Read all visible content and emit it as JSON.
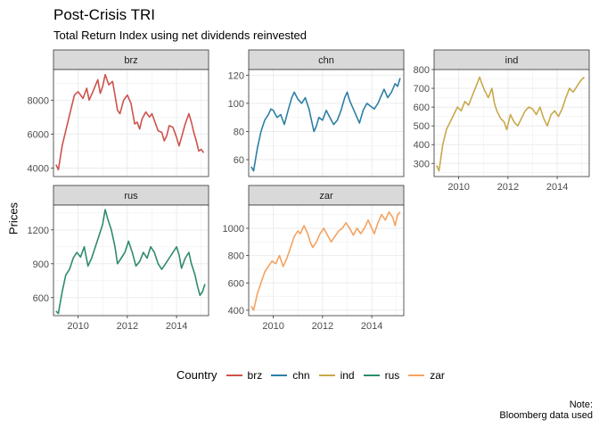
{
  "chart_data": {
    "type": "line",
    "title": "Post-Crisis TRI",
    "subtitle": "Total Return Index using net dividends reinvested",
    "ylabel": "Prices",
    "xlabel": "",
    "legend_title": "Country",
    "legend_position": "bottom",
    "note_lines": [
      "Note:",
      "Bloomberg data used"
    ],
    "grid": true,
    "x_ticks": [
      "2010",
      "2012",
      "2014"
    ],
    "xlim": [
      2009.0,
      2015.3
    ],
    "panels": [
      {
        "name": "brz",
        "color": "#CD534C",
        "ylim": [
          3500,
          9800
        ],
        "y_ticks": [
          4000,
          6000,
          8000
        ],
        "points": [
          [
            2009.1,
            4200
          ],
          [
            2009.2,
            3900
          ],
          [
            2009.35,
            5300
          ],
          [
            2009.5,
            6200
          ],
          [
            2009.7,
            7400
          ],
          [
            2009.85,
            8300
          ],
          [
            2010.0,
            8500
          ],
          [
            2010.2,
            8100
          ],
          [
            2010.35,
            8700
          ],
          [
            2010.45,
            8000
          ],
          [
            2010.6,
            8500
          ],
          [
            2010.8,
            9200
          ],
          [
            2010.9,
            8400
          ],
          [
            2011.0,
            8800
          ],
          [
            2011.1,
            9500
          ],
          [
            2011.25,
            8900
          ],
          [
            2011.4,
            9100
          ],
          [
            2011.5,
            8300
          ],
          [
            2011.6,
            7400
          ],
          [
            2011.7,
            7200
          ],
          [
            2011.85,
            8000
          ],
          [
            2012.0,
            8300
          ],
          [
            2012.15,
            7800
          ],
          [
            2012.3,
            6600
          ],
          [
            2012.4,
            6700
          ],
          [
            2012.5,
            6300
          ],
          [
            2012.6,
            6900
          ],
          [
            2012.75,
            7300
          ],
          [
            2012.9,
            7000
          ],
          [
            2013.0,
            7200
          ],
          [
            2013.1,
            6800
          ],
          [
            2013.25,
            6200
          ],
          [
            2013.4,
            6100
          ],
          [
            2013.5,
            5600
          ],
          [
            2013.6,
            5900
          ],
          [
            2013.7,
            6500
          ],
          [
            2013.85,
            6400
          ],
          [
            2014.0,
            5800
          ],
          [
            2014.1,
            5300
          ],
          [
            2014.2,
            5800
          ],
          [
            2014.35,
            6600
          ],
          [
            2014.5,
            7200
          ],
          [
            2014.6,
            6700
          ],
          [
            2014.7,
            6100
          ],
          [
            2014.8,
            5600
          ],
          [
            2014.9,
            5000
          ],
          [
            2015.0,
            5100
          ],
          [
            2015.1,
            4900
          ]
        ]
      },
      {
        "name": "chn",
        "color": "#2E7FA6",
        "ylim": [
          48,
          124
        ],
        "y_ticks": [
          60,
          80,
          100,
          120
        ],
        "points": [
          [
            2009.1,
            55
          ],
          [
            2009.2,
            52
          ],
          [
            2009.35,
            68
          ],
          [
            2009.5,
            80
          ],
          [
            2009.65,
            88
          ],
          [
            2009.8,
            92
          ],
          [
            2009.9,
            96
          ],
          [
            2010.0,
            95
          ],
          [
            2010.15,
            90
          ],
          [
            2010.3,
            92
          ],
          [
            2010.45,
            85
          ],
          [
            2010.6,
            95
          ],
          [
            2010.75,
            104
          ],
          [
            2010.85,
            108
          ],
          [
            2011.0,
            103
          ],
          [
            2011.15,
            100
          ],
          [
            2011.3,
            104
          ],
          [
            2011.45,
            96
          ],
          [
            2011.55,
            88
          ],
          [
            2011.65,
            80
          ],
          [
            2011.75,
            84
          ],
          [
            2011.85,
            90
          ],
          [
            2012.0,
            88
          ],
          [
            2012.15,
            95
          ],
          [
            2012.3,
            90
          ],
          [
            2012.45,
            85
          ],
          [
            2012.6,
            88
          ],
          [
            2012.75,
            95
          ],
          [
            2012.9,
            104
          ],
          [
            2013.0,
            108
          ],
          [
            2013.1,
            102
          ],
          [
            2013.25,
            96
          ],
          [
            2013.4,
            90
          ],
          [
            2013.5,
            86
          ],
          [
            2013.65,
            95
          ],
          [
            2013.8,
            100
          ],
          [
            2013.95,
            98
          ],
          [
            2014.1,
            96
          ],
          [
            2014.25,
            100
          ],
          [
            2014.4,
            106
          ],
          [
            2014.5,
            110
          ],
          [
            2014.65,
            104
          ],
          [
            2014.8,
            108
          ],
          [
            2014.95,
            114
          ],
          [
            2015.05,
            112
          ],
          [
            2015.15,
            118
          ]
        ]
      },
      {
        "name": "ind",
        "color": "#C9A84C",
        "ylim": [
          230,
          800
        ],
        "y_ticks": [
          300,
          400,
          500,
          600,
          700,
          800
        ],
        "points": [
          [
            2009.1,
            290
          ],
          [
            2009.2,
            260
          ],
          [
            2009.35,
            400
          ],
          [
            2009.5,
            480
          ],
          [
            2009.65,
            520
          ],
          [
            2009.8,
            560
          ],
          [
            2009.95,
            600
          ],
          [
            2010.1,
            580
          ],
          [
            2010.25,
            630
          ],
          [
            2010.4,
            610
          ],
          [
            2010.55,
            660
          ],
          [
            2010.7,
            710
          ],
          [
            2010.85,
            760
          ],
          [
            2010.95,
            720
          ],
          [
            2011.05,
            690
          ],
          [
            2011.2,
            650
          ],
          [
            2011.35,
            700
          ],
          [
            2011.45,
            620
          ],
          [
            2011.55,
            580
          ],
          [
            2011.7,
            540
          ],
          [
            2011.85,
            520
          ],
          [
            2011.95,
            480
          ],
          [
            2012.1,
            560
          ],
          [
            2012.25,
            520
          ],
          [
            2012.4,
            500
          ],
          [
            2012.55,
            540
          ],
          [
            2012.7,
            580
          ],
          [
            2012.85,
            600
          ],
          [
            2013.0,
            590
          ],
          [
            2013.15,
            560
          ],
          [
            2013.3,
            600
          ],
          [
            2013.45,
            540
          ],
          [
            2013.6,
            500
          ],
          [
            2013.75,
            560
          ],
          [
            2013.9,
            580
          ],
          [
            2014.05,
            550
          ],
          [
            2014.2,
            590
          ],
          [
            2014.35,
            650
          ],
          [
            2014.5,
            700
          ],
          [
            2014.65,
            680
          ],
          [
            2014.8,
            710
          ],
          [
            2014.95,
            740
          ],
          [
            2015.1,
            760
          ]
        ]
      },
      {
        "name": "rus",
        "color": "#2E8B6E",
        "ylim": [
          440,
          1420
        ],
        "y_ticks": [
          600,
          900,
          1200
        ],
        "points": [
          [
            2009.1,
            480
          ],
          [
            2009.2,
            460
          ],
          [
            2009.35,
            650
          ],
          [
            2009.5,
            800
          ],
          [
            2009.65,
            850
          ],
          [
            2009.8,
            950
          ],
          [
            2009.95,
            1000
          ],
          [
            2010.1,
            960
          ],
          [
            2010.25,
            1050
          ],
          [
            2010.4,
            880
          ],
          [
            2010.55,
            950
          ],
          [
            2010.7,
            1050
          ],
          [
            2010.85,
            1150
          ],
          [
            2011.0,
            1250
          ],
          [
            2011.1,
            1380
          ],
          [
            2011.2,
            1300
          ],
          [
            2011.35,
            1200
          ],
          [
            2011.5,
            1050
          ],
          [
            2011.6,
            900
          ],
          [
            2011.75,
            950
          ],
          [
            2011.9,
            1000
          ],
          [
            2012.05,
            1100
          ],
          [
            2012.2,
            1000
          ],
          [
            2012.35,
            880
          ],
          [
            2012.5,
            920
          ],
          [
            2012.65,
            1000
          ],
          [
            2012.8,
            950
          ],
          [
            2012.95,
            1050
          ],
          [
            2013.1,
            1000
          ],
          [
            2013.25,
            900
          ],
          [
            2013.4,
            850
          ],
          [
            2013.55,
            900
          ],
          [
            2013.7,
            950
          ],
          [
            2013.85,
            1000
          ],
          [
            2014.0,
            1050
          ],
          [
            2014.1,
            980
          ],
          [
            2014.2,
            860
          ],
          [
            2014.35,
            950
          ],
          [
            2014.5,
            1000
          ],
          [
            2014.6,
            900
          ],
          [
            2014.75,
            800
          ],
          [
            2014.85,
            700
          ],
          [
            2014.95,
            620
          ],
          [
            2015.05,
            650
          ],
          [
            2015.15,
            720
          ]
        ]
      },
      {
        "name": "zar",
        "color": "#F4A261",
        "ylim": [
          360,
          1170
        ],
        "y_ticks": [
          400,
          600,
          800,
          1000
        ],
        "points": [
          [
            2009.1,
            430
          ],
          [
            2009.2,
            400
          ],
          [
            2009.35,
            520
          ],
          [
            2009.5,
            600
          ],
          [
            2009.65,
            680
          ],
          [
            2009.8,
            720
          ],
          [
            2009.95,
            760
          ],
          [
            2010.1,
            740
          ],
          [
            2010.25,
            800
          ],
          [
            2010.4,
            720
          ],
          [
            2010.55,
            780
          ],
          [
            2010.7,
            860
          ],
          [
            2010.85,
            940
          ],
          [
            2011.0,
            980
          ],
          [
            2011.1,
            960
          ],
          [
            2011.25,
            1020
          ],
          [
            2011.4,
            960
          ],
          [
            2011.5,
            900
          ],
          [
            2011.6,
            860
          ],
          [
            2011.75,
            900
          ],
          [
            2011.9,
            960
          ],
          [
            2012.05,
            1000
          ],
          [
            2012.2,
            950
          ],
          [
            2012.35,
            900
          ],
          [
            2012.5,
            940
          ],
          [
            2012.65,
            980
          ],
          [
            2012.8,
            1000
          ],
          [
            2012.95,
            1040
          ],
          [
            2013.1,
            1000
          ],
          [
            2013.25,
            950
          ],
          [
            2013.4,
            1000
          ],
          [
            2013.55,
            960
          ],
          [
            2013.7,
            1000
          ],
          [
            2013.85,
            1060
          ],
          [
            2014.0,
            1000
          ],
          [
            2014.1,
            960
          ],
          [
            2014.25,
            1040
          ],
          [
            2014.4,
            1100
          ],
          [
            2014.55,
            1060
          ],
          [
            2014.7,
            1120
          ],
          [
            2014.85,
            1080
          ],
          [
            2014.95,
            1020
          ],
          [
            2015.05,
            1100
          ],
          [
            2015.15,
            1120
          ]
        ]
      }
    ]
  }
}
